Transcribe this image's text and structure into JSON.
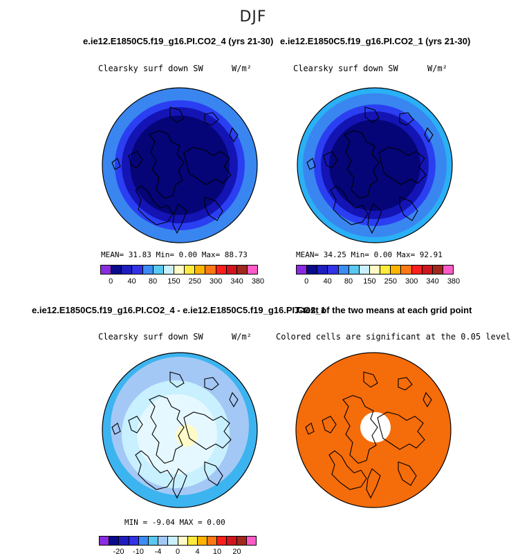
{
  "season": "DJF",
  "panels": [
    {
      "title": "e.ie12.E1850C5.f19_g16.PI.CO2_4 (yrs 21-30)",
      "variable": "Clearsky surf down SW",
      "units": "W/m²",
      "stats": "MEAN=  31.83  Min=   0.00  Max=  88.73",
      "ring_colors": [
        "#3a86f0",
        "#2a3ff2",
        "#1414b4",
        "#050577"
      ],
      "colorbar": {
        "colors": [
          "#8a2be2",
          "#0a0a8a",
          "#1e1ebe",
          "#3232e6",
          "#3c8cf5",
          "#5ac8f0",
          "#c8f0ff",
          "#fffac8",
          "#ffeb3c",
          "#ffb400",
          "#ff7814",
          "#ff1e1e",
          "#d2141e",
          "#a0281e",
          "#ff5ac8"
        ],
        "ticks": [
          "0",
          "40",
          "80",
          "150",
          "250",
          "300",
          "340",
          "380"
        ]
      }
    },
    {
      "title": "e.ie12.E1850C5.f19_g16.PI.CO2_1 (yrs 21-30)",
      "variable": "Clearsky surf down SW",
      "units": "W/m²",
      "stats": "MEAN=  34.25  Min=   0.00  Max=  92.91",
      "ring_colors": [
        "#2ab0f5",
        "#3a86f0",
        "#2a3ff2",
        "#1414b4",
        "#050577"
      ],
      "colorbar": {
        "colors": [
          "#8a2be2",
          "#0a0a8a",
          "#1e1ebe",
          "#3232e6",
          "#3c8cf5",
          "#5ac8f0",
          "#c8f0ff",
          "#fffac8",
          "#ffeb3c",
          "#ffb400",
          "#ff7814",
          "#ff1e1e",
          "#d2141e",
          "#a0281e",
          "#ff5ac8"
        ],
        "ticks": [
          "0",
          "40",
          "80",
          "150",
          "250",
          "300",
          "340",
          "380"
        ]
      }
    },
    {
      "title": "e.ie12.E1850C5.f19_g16.PI.CO2_4 - e.ie12.E1850C5.f19_g16.PI.CO2_1",
      "variable": "Clearsky surf down SW",
      "units": "W/m²",
      "stats": "MIN =  -9.04 MAX =   0.00",
      "ring_colors": [
        "#3cb4f0",
        "#a4c8f5",
        "#c8f0ff",
        "#e6f8ff",
        "#fffac8"
      ],
      "colorbar": {
        "colors": [
          "#8a2be2",
          "#0a0a8a",
          "#1e1ebe",
          "#3232e6",
          "#3c8cf5",
          "#5ac8f0",
          "#a4c8f5",
          "#c8f0ff",
          "#fffac8",
          "#ffeb3c",
          "#ffb400",
          "#ff7814",
          "#ff1e1e",
          "#d2141e",
          "#a0281e",
          "#ff5ac8"
        ],
        "ticks": [
          "-20",
          "-10",
          "-4",
          "0",
          "4",
          "10",
          "20"
        ]
      }
    },
    {
      "title": "T-test of the two means at each grid point",
      "variable": "Colored cells are significant at the 0.05 level",
      "fill_color": "#f56c0a"
    }
  ]
}
